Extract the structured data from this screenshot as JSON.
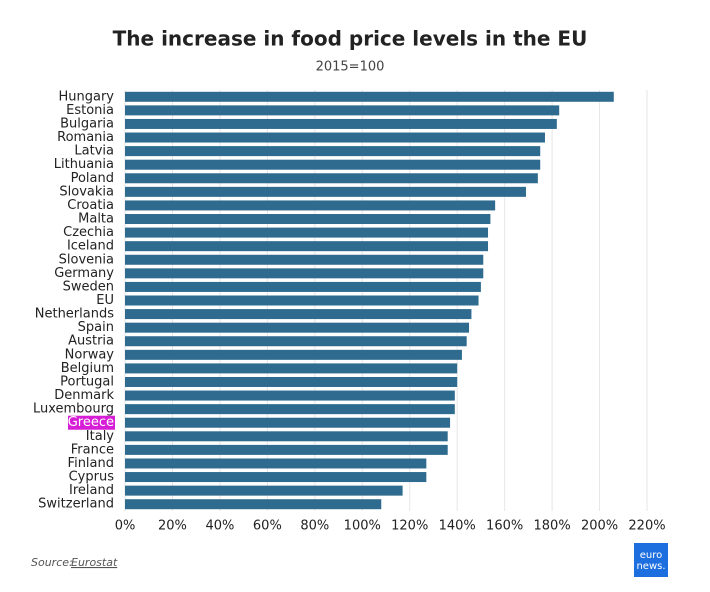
{
  "chart_data": {
    "type": "hbar",
    "title": "The increase in food price levels in the EU",
    "subtitle": "2015=100",
    "categories": [
      "Hungary",
      "Estonia",
      "Bulgaria",
      "Romania",
      "Latvia",
      "Lithuania",
      "Poland",
      "Slovakia",
      "Croatia",
      "Malta",
      "Czechia",
      "Iceland",
      "Slovenia",
      "Germany",
      "Sweden",
      "EU",
      "Netherlands",
      "Spain",
      "Austria",
      "Norway",
      "Belgium",
      "Portugal",
      "Denmark",
      "Luxembourg",
      "Greece",
      "Italy",
      "France",
      "Finland",
      "Cyprus",
      "Ireland",
      "Switzerland"
    ],
    "values": [
      206,
      183,
      182,
      177,
      175,
      175,
      174,
      169,
      156,
      154,
      153,
      153,
      151,
      151,
      150,
      149,
      146,
      145,
      144,
      142,
      140,
      140,
      139,
      139,
      137,
      136,
      136,
      127,
      127,
      117,
      108
    ],
    "color": "#2e6b8f",
    "highlight": {
      "category": 24,
      "color": "#d61ed6"
    },
    "xlim": [
      0,
      220
    ],
    "xticks": [
      {
        "value": 0,
        "label": "0%"
      },
      {
        "value": 20,
        "label": "20%"
      },
      {
        "value": 40,
        "label": "40%"
      },
      {
        "value": 60,
        "label": "60%"
      },
      {
        "value": 80,
        "label": "80%"
      },
      {
        "value": 100,
        "label": "100%"
      },
      {
        "value": 120,
        "label": "120%"
      },
      {
        "value": 140,
        "label": "140%"
      },
      {
        "value": 160,
        "label": "160%"
      },
      {
        "value": 180,
        "label": "180%"
      },
      {
        "value": 200,
        "label": "200%"
      },
      {
        "value": 220,
        "label": "220%"
      }
    ],
    "grid": true,
    "source_label": "Source:",
    "source": "Eurostat",
    "logo": [
      "euro",
      "news."
    ]
  }
}
